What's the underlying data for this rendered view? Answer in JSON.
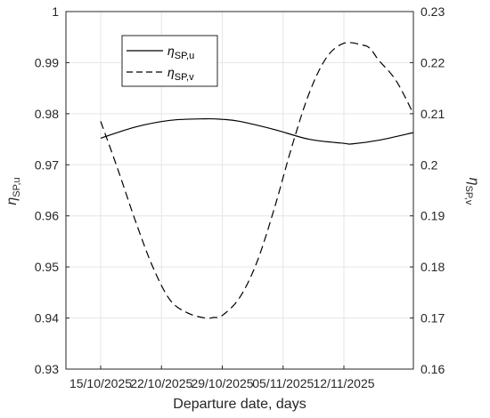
{
  "chart_data": {
    "type": "line",
    "title": "",
    "xlabel": "Departure date, days",
    "ylabel_left": {
      "symbol": "η",
      "subscript": "SP,u"
    },
    "ylabel_right": {
      "symbol": "η",
      "subscript": "SP,v"
    },
    "x_tick_labels": [
      "15/10/2025",
      "22/10/2025",
      "29/10/2025",
      "05/11/2025",
      "12/11/2025"
    ],
    "x_range_days": [
      -4,
      36
    ],
    "y_left_ticks": [
      "0.93",
      "0.94",
      "0.95",
      "0.96",
      "0.97",
      "0.98",
      "0.99",
      "1"
    ],
    "y_left_range": [
      0.93,
      1.0
    ],
    "y_right_ticks": [
      "0.16",
      "0.17",
      "0.18",
      "0.19",
      "0.2",
      "0.21",
      "0.22",
      "0.23"
    ],
    "y_right_range": [
      0.16,
      0.23
    ],
    "grid": true,
    "legend_position": "top-left",
    "series": [
      {
        "name": "η_SP,u",
        "legend_symbol": "η",
        "legend_subscript": "SP,u",
        "axis": "left",
        "style": "solid",
        "color": "#000000",
        "x": [
          0,
          4,
          8,
          12,
          14,
          16,
          20,
          24,
          28,
          29,
          32,
          36
        ],
        "y": [
          0.9752,
          0.9774,
          0.9787,
          0.979,
          0.9789,
          0.9785,
          0.9769,
          0.975,
          0.9742,
          0.9741,
          0.9748,
          0.9763
        ]
      },
      {
        "name": "η_SP,v",
        "legend_symbol": "η",
        "legend_subscript": "SP,v",
        "axis": "right",
        "style": "dashed",
        "color": "#000000",
        "x": [
          0,
          2,
          4,
          6,
          8,
          10,
          12,
          13,
          14,
          16,
          18,
          20,
          22,
          24,
          26,
          28,
          30,
          31,
          32,
          34,
          36
        ],
        "y": [
          0.2085,
          0.199,
          0.189,
          0.18,
          0.1735,
          0.171,
          0.17,
          0.1701,
          0.1705,
          0.174,
          0.181,
          0.1915,
          0.2035,
          0.214,
          0.221,
          0.2238,
          0.2235,
          0.2228,
          0.2205,
          0.2165,
          0.21
        ]
      }
    ]
  }
}
